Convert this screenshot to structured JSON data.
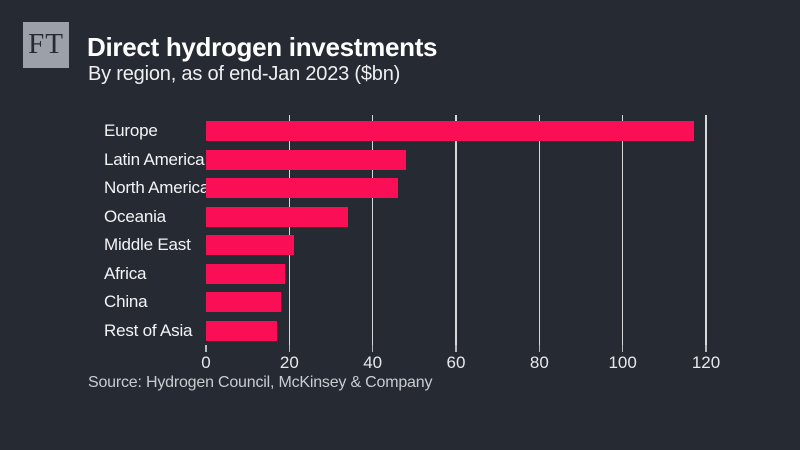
{
  "brand": {
    "logo_text": "FT"
  },
  "header": {
    "title": "Direct hydrogen investments",
    "subtitle": "By region, as of end-Jan 2023 ($bn)"
  },
  "source": "Source: Hydrogen Council, McKinsey & Company",
  "colors": {
    "background": "#262A33",
    "bar": "#FA0E56",
    "logo_background": "#9CA1A9",
    "gridline": "#D6D8DC",
    "tick": "#B6BAC0",
    "title_text": "#FFFFFF",
    "label_text": "#F3F4F6",
    "source_text": "#C9CCD0"
  },
  "chart_data": {
    "type": "bar",
    "orientation": "horizontal",
    "title": "Direct hydrogen investments",
    "subtitle": "By region, as of end-Jan 2023 ($bn)",
    "categories": [
      "Europe",
      "Latin America",
      "North America",
      "Oceania",
      "Middle East",
      "Africa",
      "China",
      "Rest of Asia"
    ],
    "values": [
      117,
      48,
      46,
      34,
      21,
      19,
      18,
      17
    ],
    "xlabel": "",
    "ylabel": "",
    "xlim": [
      0,
      120
    ],
    "xticks": [
      0,
      20,
      40,
      60,
      80,
      100,
      120
    ],
    "grid": true,
    "legend": "none",
    "source": "Source: Hydrogen Council, McKinsey & Company"
  }
}
